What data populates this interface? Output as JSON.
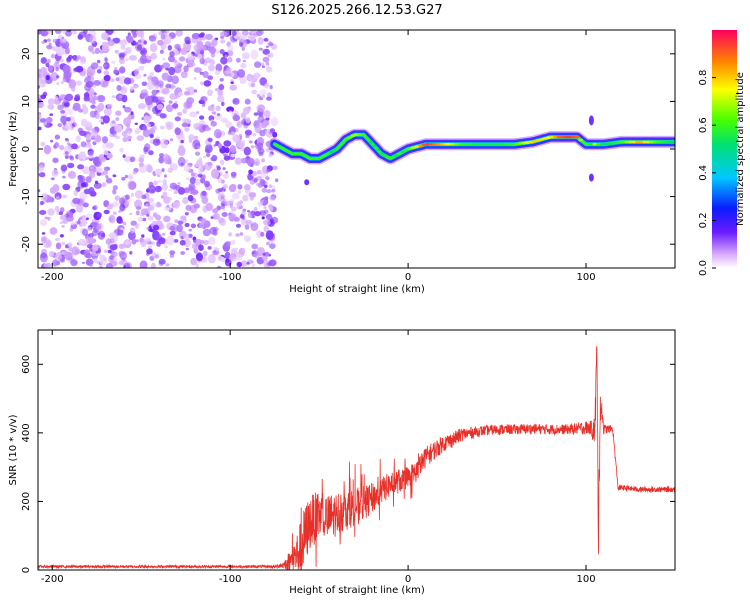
{
  "figure_title": "S126.2025.266.12.53.G27",
  "colors": {
    "snr_line": "#e8302a",
    "spec_noise": "#7a3cf0",
    "axis": "#000000"
  },
  "chart_data": [
    {
      "type": "heatmap",
      "name": "spectrogram",
      "xlabel": "Height of straight line (km)",
      "ylabel": "Frequency (Hz)",
      "xlim": [
        -208,
        150
      ],
      "ylim": [
        -25,
        25
      ],
      "xticks": [
        -200,
        -100,
        0,
        100
      ],
      "xtick_labels": [
        "-200",
        "-100",
        "0",
        "100"
      ],
      "yticks": [
        -20,
        -10,
        0,
        10,
        20
      ],
      "ytick_labels": [
        "-20",
        "-10",
        "0",
        "10",
        "20"
      ],
      "noise_region_km": [
        -208,
        -75
      ],
      "ridge": {
        "x_km": [
          -75,
          -70,
          -65,
          -60,
          -55,
          -50,
          -45,
          -40,
          -35,
          -30,
          -25,
          -20,
          -15,
          -10,
          -5,
          0,
          10,
          20,
          30,
          40,
          50,
          60,
          70,
          80,
          85,
          90,
          95,
          100,
          105,
          110,
          120,
          130,
          140,
          150
        ],
        "freq_hz": [
          1,
          0,
          -1,
          -1,
          -2,
          -2,
          -1,
          0,
          2,
          3,
          3,
          1,
          -1,
          -2,
          -1,
          0,
          1,
          1,
          1,
          1,
          1,
          1,
          1.5,
          2.5,
          2.5,
          2.5,
          2.5,
          1,
          1,
          1,
          1.5,
          1.5,
          1.5,
          1.5
        ],
        "amplitude": [
          0.2,
          0.25,
          0.35,
          0.4,
          0.5,
          0.45,
          0.5,
          0.55,
          0.6,
          0.7,
          0.6,
          0.5,
          0.55,
          0.6,
          0.5,
          0.6,
          0.95,
          0.8,
          0.6,
          0.55,
          0.55,
          0.6,
          0.8,
          0.75,
          0.9,
          0.95,
          0.9,
          0.35,
          0.7,
          0.5,
          0.6,
          0.85,
          0.6,
          0.5
        ]
      },
      "colorbar": {
        "label": "Normalized spectral amplitude",
        "range": [
          0,
          1
        ],
        "ticks": [
          0.0,
          0.2,
          0.4,
          0.6,
          0.8
        ],
        "tick_labels": [
          "0.0",
          "0.2",
          "0.4",
          "0.6",
          "0.8"
        ]
      }
    },
    {
      "type": "line",
      "name": "snr",
      "xlabel": "Height of straight line (km)",
      "ylabel": "SNR (10 * v/v)",
      "xlim": [
        -208,
        150
      ],
      "ylim": [
        0,
        700
      ],
      "xticks": [
        -200,
        -100,
        0,
        100
      ],
      "xtick_labels": [
        "-200",
        "-100",
        "0",
        "100"
      ],
      "yticks": [
        0,
        200,
        400,
        600
      ],
      "ytick_labels": [
        "0",
        "200",
        "400",
        "600"
      ],
      "x_km": [
        -208,
        -150,
        -100,
        -75,
        -70,
        -65,
        -60,
        -58,
        -55,
        -50,
        -45,
        -40,
        -35,
        -30,
        -25,
        -20,
        -15,
        -10,
        -5,
        0,
        5,
        10,
        15,
        20,
        25,
        30,
        40,
        50,
        60,
        70,
        80,
        90,
        100,
        103,
        105,
        106,
        107,
        108,
        110,
        115,
        118,
        120,
        130,
        140,
        150
      ],
      "snr": [
        10,
        10,
        10,
        10,
        15,
        30,
        60,
        100,
        140,
        160,
        150,
        165,
        175,
        185,
        195,
        210,
        230,
        250,
        260,
        270,
        290,
        330,
        350,
        370,
        380,
        395,
        405,
        410,
        410,
        412,
        410,
        410,
        415,
        415,
        400,
        650,
        100,
        500,
        410,
        412,
        240,
        240,
        235,
        235,
        235
      ],
      "noise_amp": [
        4,
        4,
        4,
        4,
        10,
        40,
        90,
        90,
        80,
        70,
        70,
        65,
        60,
        55,
        50,
        45,
        40,
        38,
        36,
        34,
        32,
        30,
        28,
        25,
        22,
        20,
        15,
        15,
        15,
        15,
        15,
        15,
        20,
        20,
        60,
        80,
        80,
        60,
        15,
        10,
        10,
        8,
        8,
        8,
        8
      ]
    }
  ]
}
